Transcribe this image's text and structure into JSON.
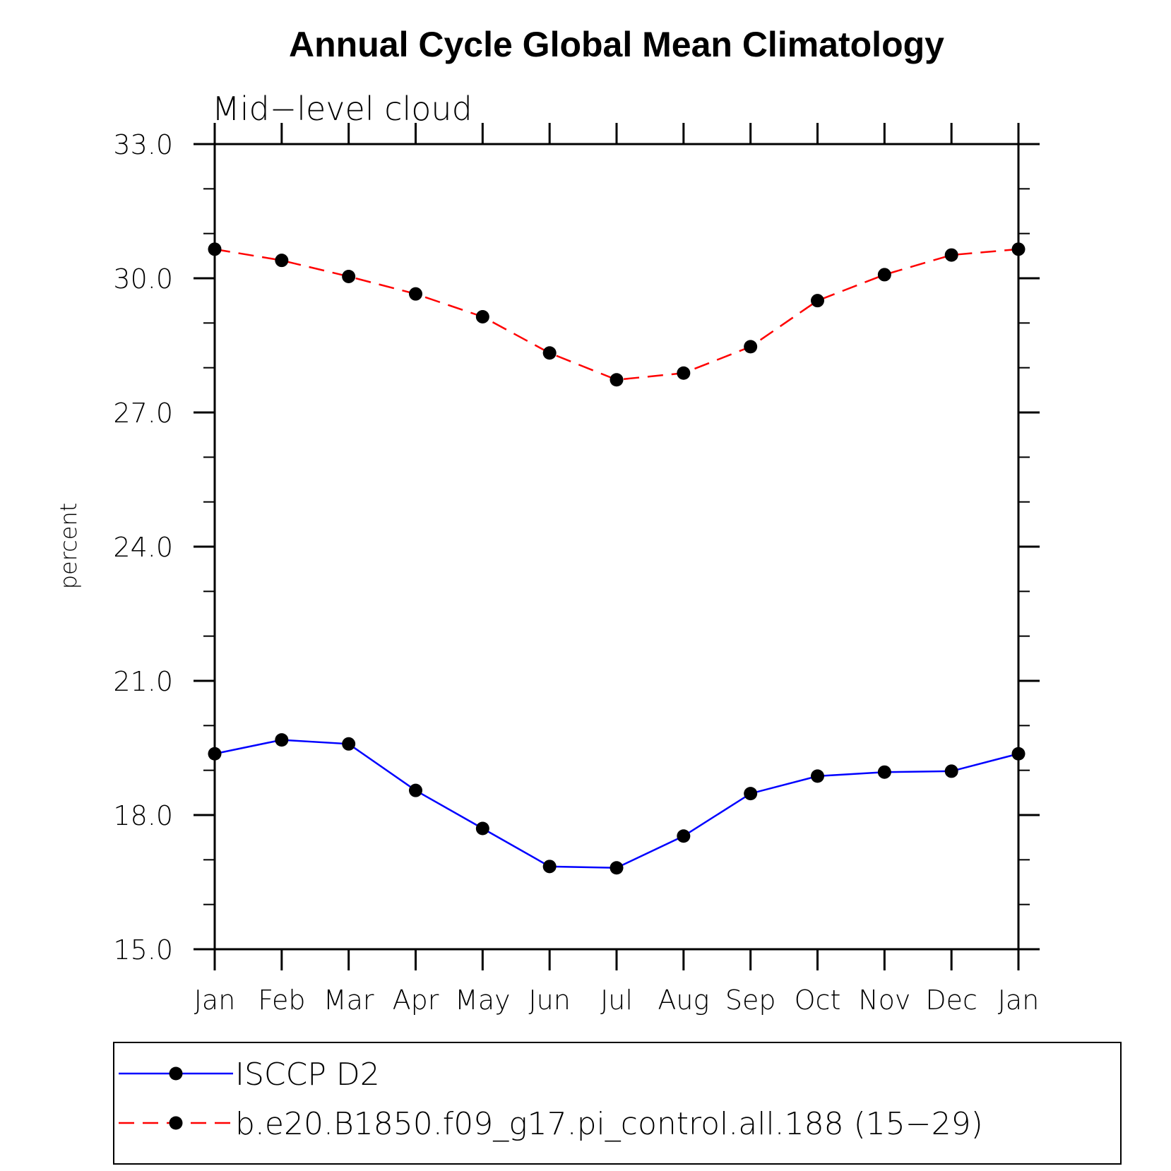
{
  "chart_data": {
    "type": "line",
    "title": "Annual Cycle Global Mean Climatology",
    "subtitle": "Mid−level cloud",
    "xlabel": "",
    "ylabel": "percent",
    "categories": [
      "Jan",
      "Feb",
      "Mar",
      "Apr",
      "May",
      "Jun",
      "Jul",
      "Aug",
      "Sep",
      "Oct",
      "Nov",
      "Dec",
      "Jan"
    ],
    "ylim": [
      15.0,
      33.0
    ],
    "yticks": [
      "15.0",
      "18.0",
      "21.0",
      "24.0",
      "27.0",
      "30.0",
      "33.0"
    ],
    "ytick_values": [
      15,
      18,
      21,
      24,
      27,
      30,
      33
    ],
    "grid": false,
    "legend_position": "bottom",
    "series": [
      {
        "name": "ISCCP D2",
        "color": "#0000ff",
        "line_style": "solid",
        "marker": "filled-circle",
        "values": [
          19.37,
          19.68,
          19.59,
          18.55,
          17.7,
          16.85,
          16.82,
          17.53,
          18.48,
          18.87,
          18.96,
          18.98,
          19.37
        ]
      },
      {
        "name": "b.e20.B1850.f09_g17.pi_control.all.188 (15−29)",
        "color": "#ff0000",
        "line_style": "dashed",
        "marker": "filled-circle",
        "values": [
          30.65,
          30.4,
          30.04,
          29.65,
          29.14,
          28.33,
          27.73,
          27.88,
          28.47,
          29.5,
          30.08,
          30.52,
          30.65
        ]
      }
    ]
  }
}
